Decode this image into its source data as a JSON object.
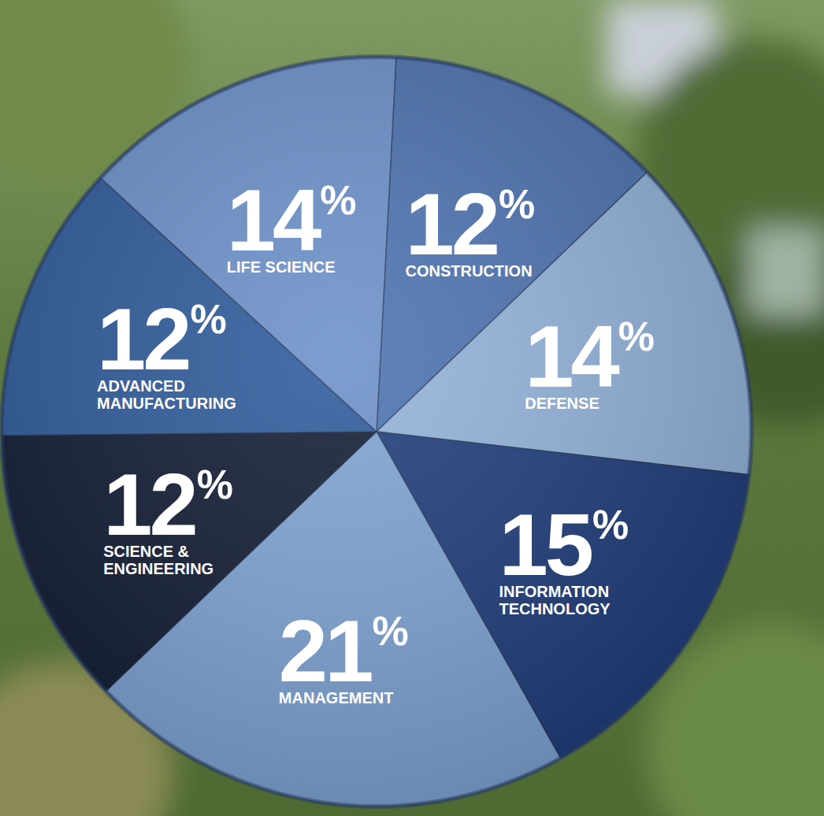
{
  "chart_data": {
    "type": "pie",
    "categories": [
      "CONSTRUCTION",
      "DEFENSE",
      "INFORMATION TECHNOLOGY",
      "MANAGEMENT",
      "SCIENCE & ENGINEERING",
      "ADVANCED MANUFACTURING",
      "LIFE SCIENCE"
    ],
    "values": [
      12,
      14,
      15,
      21,
      12,
      12,
      14
    ],
    "value_labels": [
      "12%",
      "14%",
      "15%",
      "21%",
      "12%",
      "12%",
      "14%"
    ],
    "colors": [
      "#4c72b0",
      "#92b2da",
      "#1f3c7a",
      "#7ea3d4",
      "#111b33",
      "#2e5a9b",
      "#6b90c9"
    ],
    "data_labels": true
  }
}
